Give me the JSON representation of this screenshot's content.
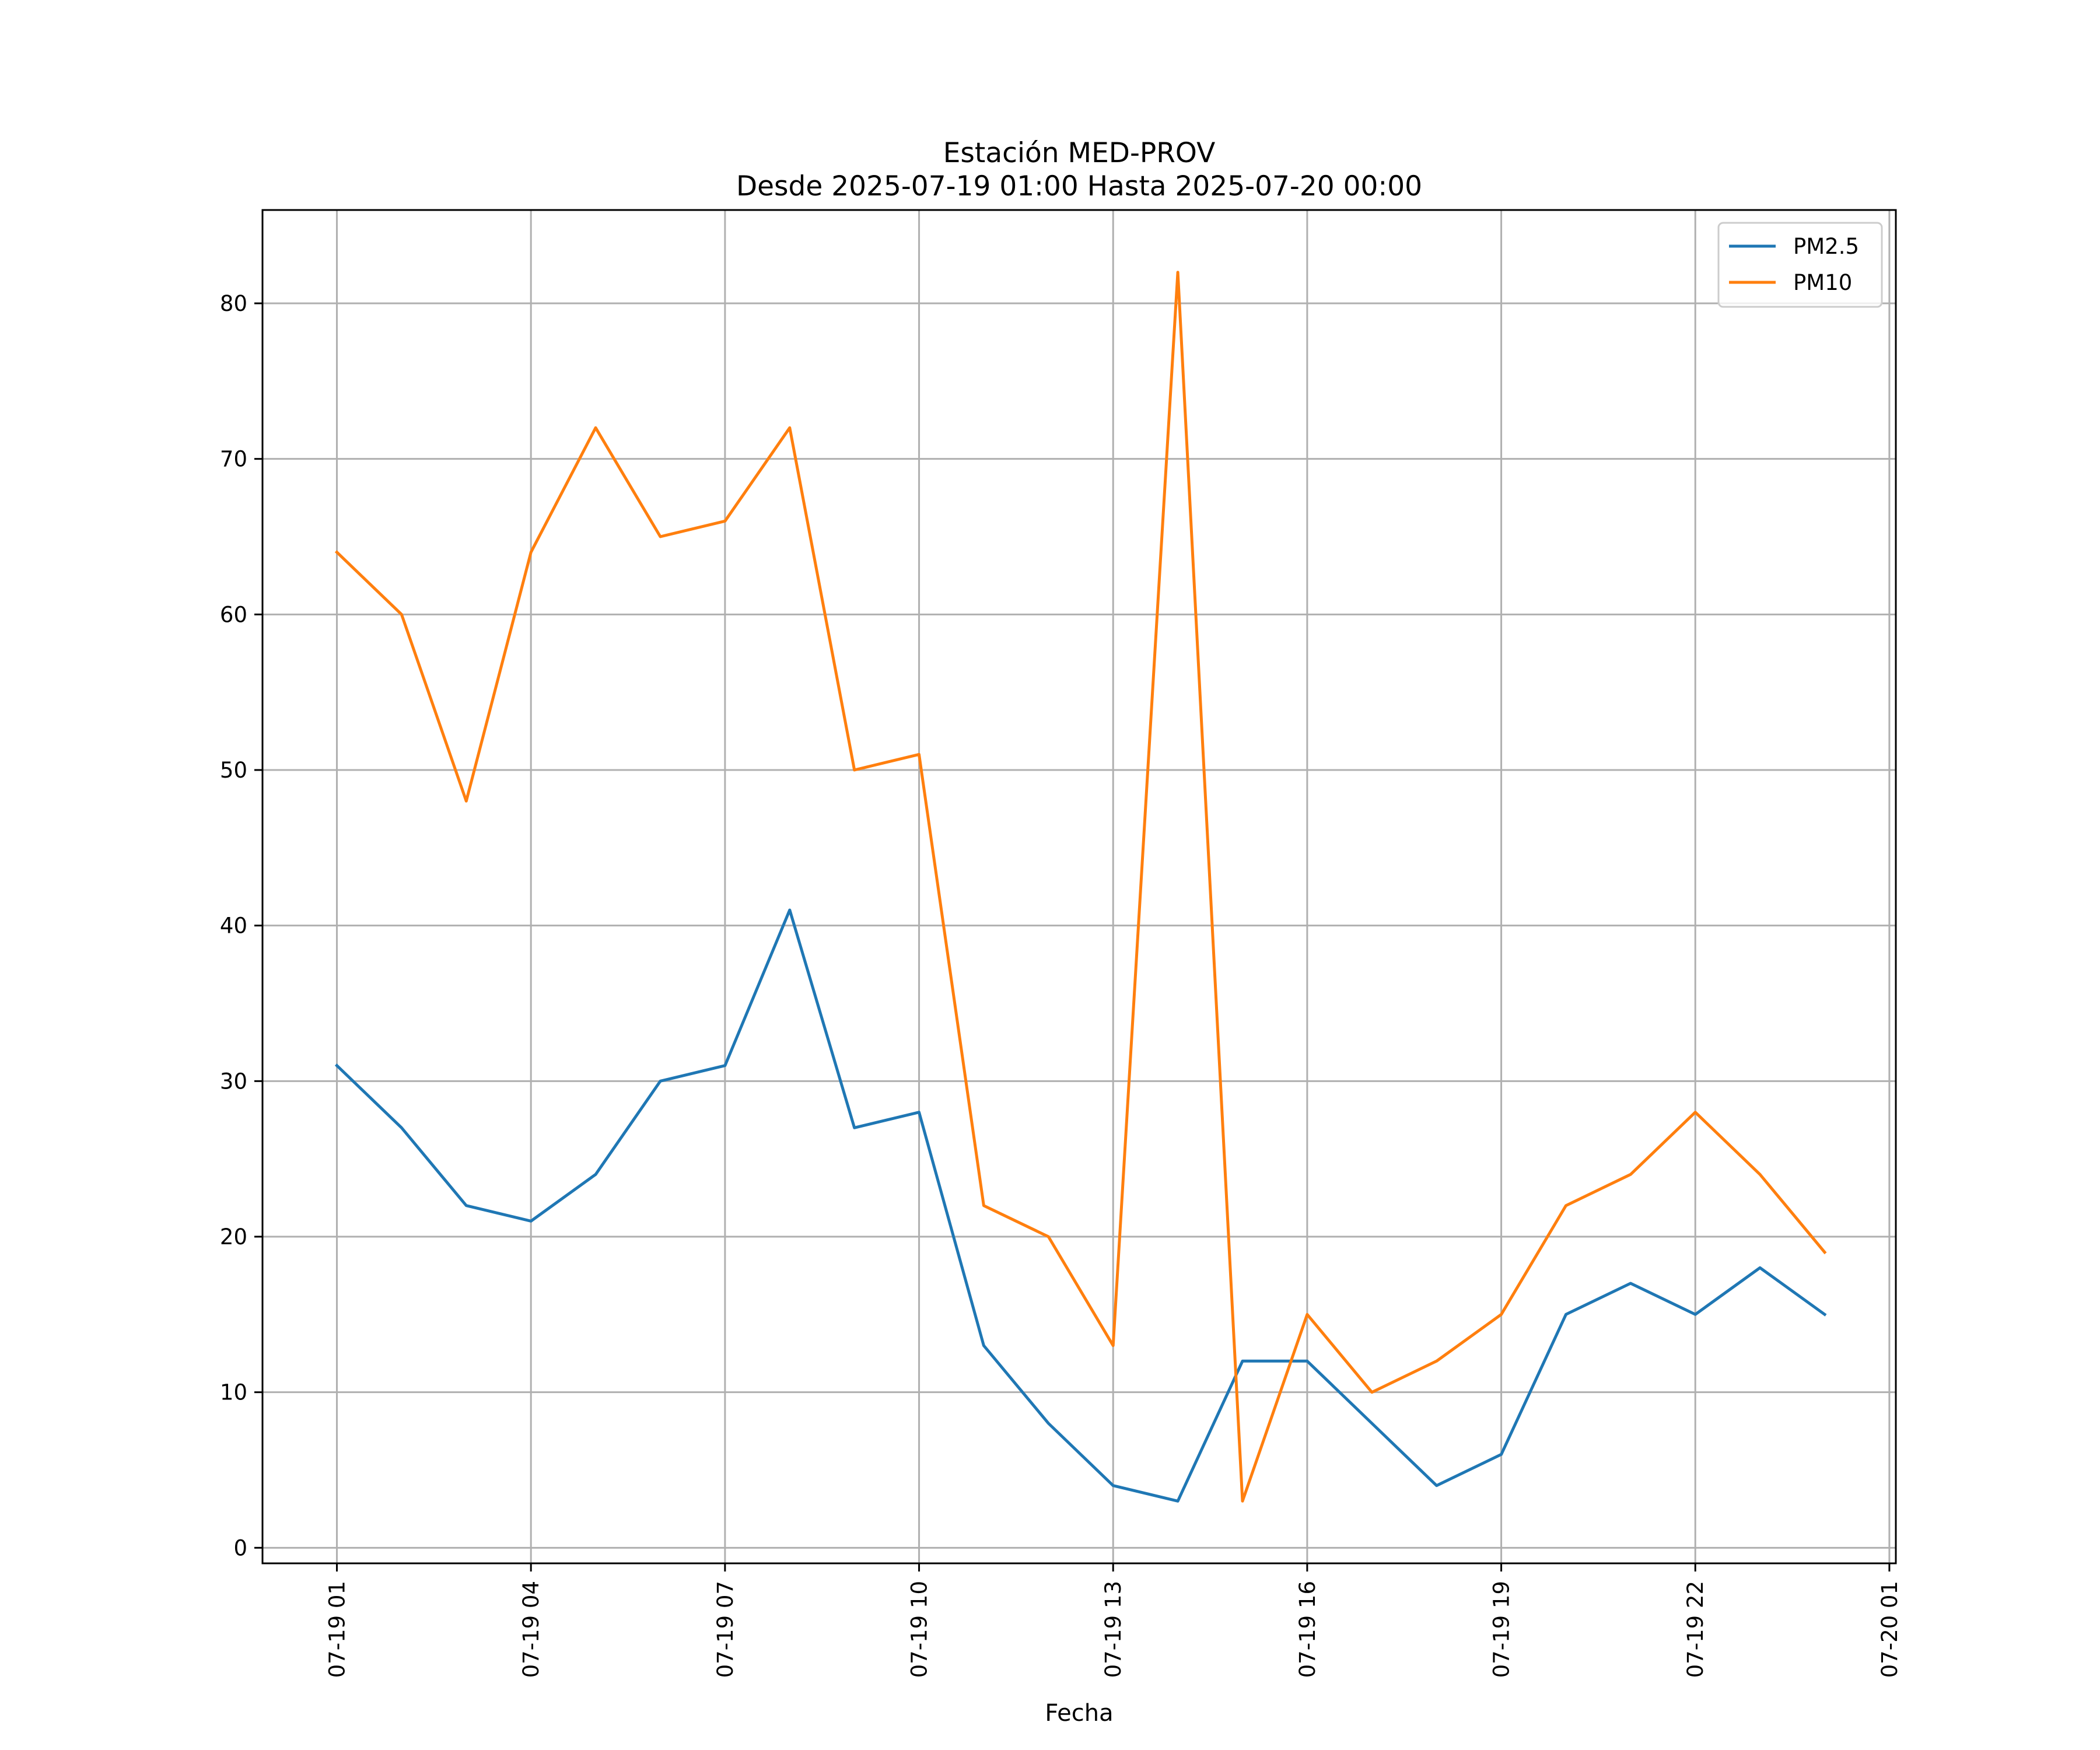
{
  "chart_data": {
    "type": "line",
    "title": "Estación MED-PROV",
    "subtitle": "Desde 2025-07-19 01:00 Hasta 2025-07-20 00:00",
    "xlabel": "Fecha",
    "ylabel": "",
    "x_hours": [
      1,
      2,
      3,
      4,
      5,
      6,
      7,
      8,
      9,
      10,
      11,
      12,
      13,
      14,
      15,
      16,
      17,
      18,
      19,
      20,
      21,
      22,
      23,
      24
    ],
    "x_ticks": [
      {
        "hour": 1,
        "label": "07-19 01"
      },
      {
        "hour": 4,
        "label": "07-19 04"
      },
      {
        "hour": 7,
        "label": "07-19 07"
      },
      {
        "hour": 10,
        "label": "07-19 10"
      },
      {
        "hour": 13,
        "label": "07-19 13"
      },
      {
        "hour": 16,
        "label": "07-19 16"
      },
      {
        "hour": 19,
        "label": "07-19 19"
      },
      {
        "hour": 22,
        "label": "07-19 22"
      },
      {
        "hour": 25,
        "label": "07-20 01"
      }
    ],
    "y_ticks": [
      0,
      10,
      20,
      30,
      40,
      50,
      60,
      70,
      80
    ],
    "ylim": [
      -1,
      86
    ],
    "xlim": [
      -0.15,
      25.1
    ],
    "grid": true,
    "legend_position": "top-right",
    "series": [
      {
        "name": "PM2.5",
        "color": "#1f77b4",
        "values": [
          31,
          27,
          22,
          21,
          24,
          30,
          31,
          41,
          27,
          28,
          13,
          8,
          4,
          3,
          12,
          12,
          8,
          4,
          6,
          15,
          17,
          15,
          18,
          15
        ]
      },
      {
        "name": "PM10",
        "color": "#ff7f0e",
        "values": [
          64,
          60,
          48,
          64,
          72,
          65,
          66,
          72,
          50,
          51,
          22,
          20,
          13,
          82,
          3,
          15,
          10,
          12,
          15,
          22,
          24,
          28,
          24,
          19
        ]
      }
    ]
  }
}
